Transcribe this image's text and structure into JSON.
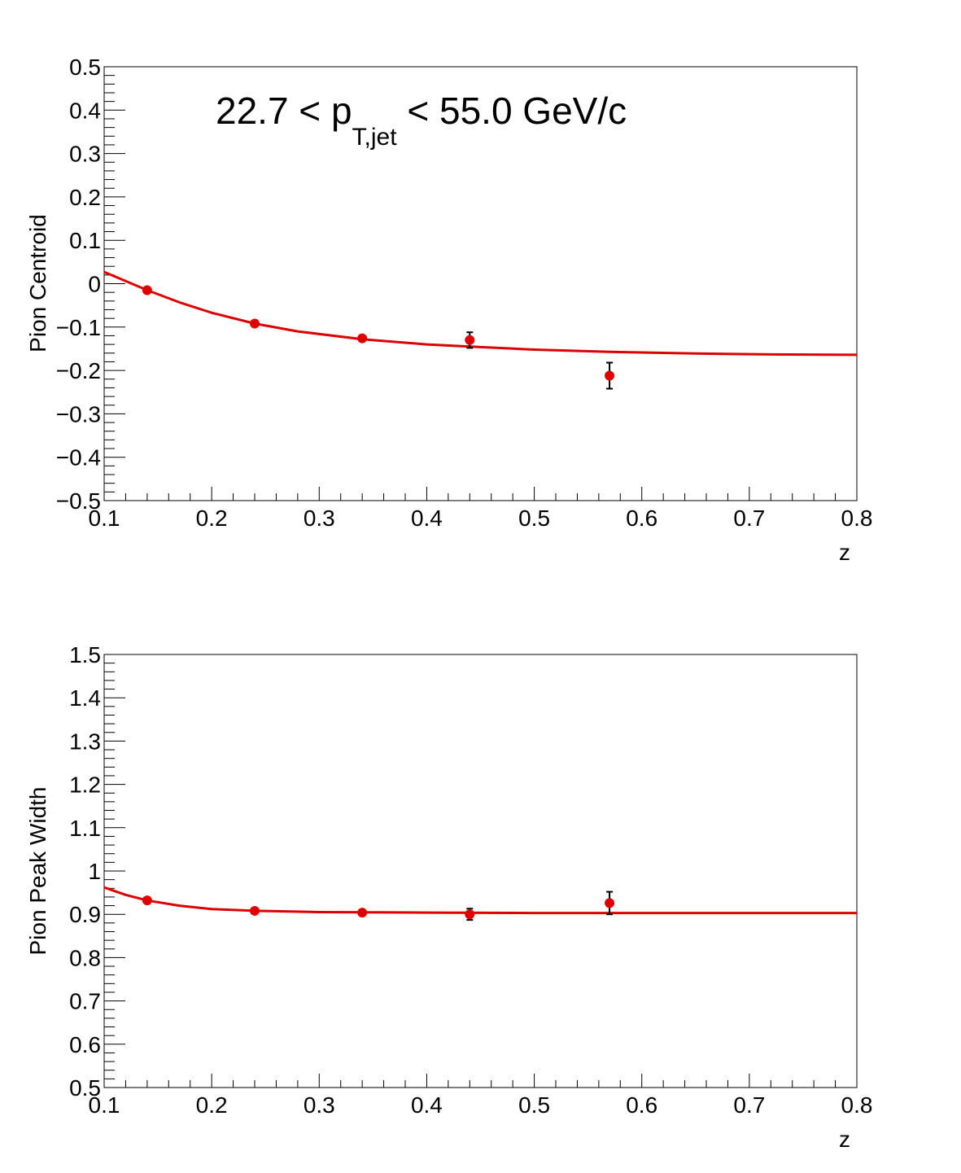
{
  "chart_data": [
    {
      "type": "scatter",
      "title": "",
      "annotation": {
        "pre": "22.7 < p",
        "sub": "T,jet",
        "post": " < 55.0 GeV/c"
      },
      "xlabel": "z",
      "ylabel": "Pion Centroid",
      "xlim": [
        0.1,
        0.8
      ],
      "ylim": [
        -0.5,
        0.5
      ],
      "xticks": [
        0.1,
        0.2,
        0.3,
        0.4,
        0.5,
        0.6,
        0.7,
        0.8
      ],
      "xtick_labels": [
        "0.1",
        "0.2",
        "0.3",
        "0.4",
        "0.5",
        "0.6",
        "0.7",
        "0.8"
      ],
      "yticks": [
        -0.5,
        -0.4,
        -0.3,
        -0.2,
        -0.1,
        0,
        0.1,
        0.2,
        0.3,
        0.4,
        0.5
      ],
      "ytick_labels": [
        "−0.5",
        "−0.4",
        "−0.3",
        "−0.2",
        "−0.1",
        "0",
        "0.1",
        "0.2",
        "0.3",
        "0.4",
        "0.5"
      ],
      "grid": false,
      "series": [
        {
          "color": "#dd0000",
          "points": [
            {
              "x": 0.14,
              "y": -0.015,
              "err": 0.004
            },
            {
              "x": 0.24,
              "y": -0.092,
              "err": 0.003
            },
            {
              "x": 0.34,
              "y": -0.126,
              "err": 0.003
            },
            {
              "x": 0.44,
              "y": -0.13,
              "err": 0.018
            },
            {
              "x": 0.57,
              "y": -0.212,
              "err": 0.03
            }
          ]
        }
      ],
      "fit": {
        "color": "#dd0000",
        "x": [
          0.1,
          0.12,
          0.14,
          0.17,
          0.2,
          0.24,
          0.28,
          0.34,
          0.4,
          0.44,
          0.5,
          0.57,
          0.65,
          0.72,
          0.8
        ],
        "y": [
          0.027,
          0.006,
          -0.015,
          -0.043,
          -0.067,
          -0.092,
          -0.11,
          -0.128,
          -0.14,
          -0.145,
          -0.152,
          -0.157,
          -0.161,
          -0.163,
          -0.164
        ]
      }
    },
    {
      "type": "scatter",
      "title": "",
      "xlabel": "z",
      "ylabel": "Pion Peak Width",
      "xlim": [
        0.1,
        0.8
      ],
      "ylim": [
        0.5,
        1.5
      ],
      "xticks": [
        0.1,
        0.2,
        0.3,
        0.4,
        0.5,
        0.6,
        0.7,
        0.8
      ],
      "xtick_labels": [
        "0.1",
        "0.2",
        "0.3",
        "0.4",
        "0.5",
        "0.6",
        "0.7",
        "0.8"
      ],
      "yticks": [
        0.5,
        0.6,
        0.7,
        0.8,
        0.9,
        1,
        1.1,
        1.2,
        1.3,
        1.4,
        1.5
      ],
      "ytick_labels": [
        "0.5",
        "0.6",
        "0.7",
        "0.8",
        "0.9",
        "1",
        "1.1",
        "1.2",
        "1.3",
        "1.4",
        "1.5"
      ],
      "grid": false,
      "series": [
        {
          "color": "#dd0000",
          "points": [
            {
              "x": 0.14,
              "y": 0.932,
              "err": 0.004
            },
            {
              "x": 0.24,
              "y": 0.908,
              "err": 0.004
            },
            {
              "x": 0.34,
              "y": 0.904,
              "err": 0.004
            },
            {
              "x": 0.44,
              "y": 0.9,
              "err": 0.013
            },
            {
              "x": 0.57,
              "y": 0.926,
              "err": 0.026
            }
          ]
        }
      ],
      "fit": {
        "color": "#dd0000",
        "x": [
          0.1,
          0.12,
          0.14,
          0.17,
          0.2,
          0.24,
          0.3,
          0.4,
          0.5,
          0.6,
          0.7,
          0.8
        ],
        "y": [
          0.962,
          0.945,
          0.932,
          0.92,
          0.912,
          0.908,
          0.905,
          0.904,
          0.903,
          0.903,
          0.903,
          0.903
        ]
      }
    }
  ]
}
